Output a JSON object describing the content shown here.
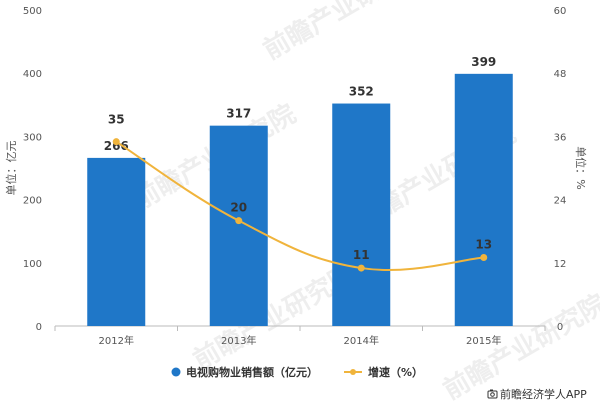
{
  "chart_data": {
    "type": "bar",
    "categories": [
      "2012年",
      "2013年",
      "2014年",
      "2015年"
    ],
    "series": [
      {
        "name": "电视购物业销售额（亿元）",
        "type": "bar",
        "axis": "left",
        "color": "#1f77c8",
        "values": [
          266,
          317,
          352,
          399
        ],
        "labels": [
          "266",
          "317",
          "352",
          "399"
        ]
      },
      {
        "name": "增速（%）",
        "type": "line",
        "axis": "right",
        "color": "#f0b43c",
        "values": [
          35,
          20,
          11,
          13
        ],
        "labels": [
          "35",
          "20",
          "11",
          "13"
        ]
      }
    ],
    "ylabel": "单位：亿元",
    "y2label": "单位：%",
    "ylim": [
      0,
      500
    ],
    "y2lim": [
      0,
      60
    ],
    "yticks": [
      "0",
      "100",
      "200",
      "300",
      "400",
      "500"
    ],
    "y2ticks": [
      "0",
      "12",
      "24",
      "36",
      "48",
      "60"
    ],
    "grid": false,
    "legend": "bottom-center"
  },
  "source": {
    "icon": "camera-icon",
    "text": "前瞻经济学人APP"
  }
}
